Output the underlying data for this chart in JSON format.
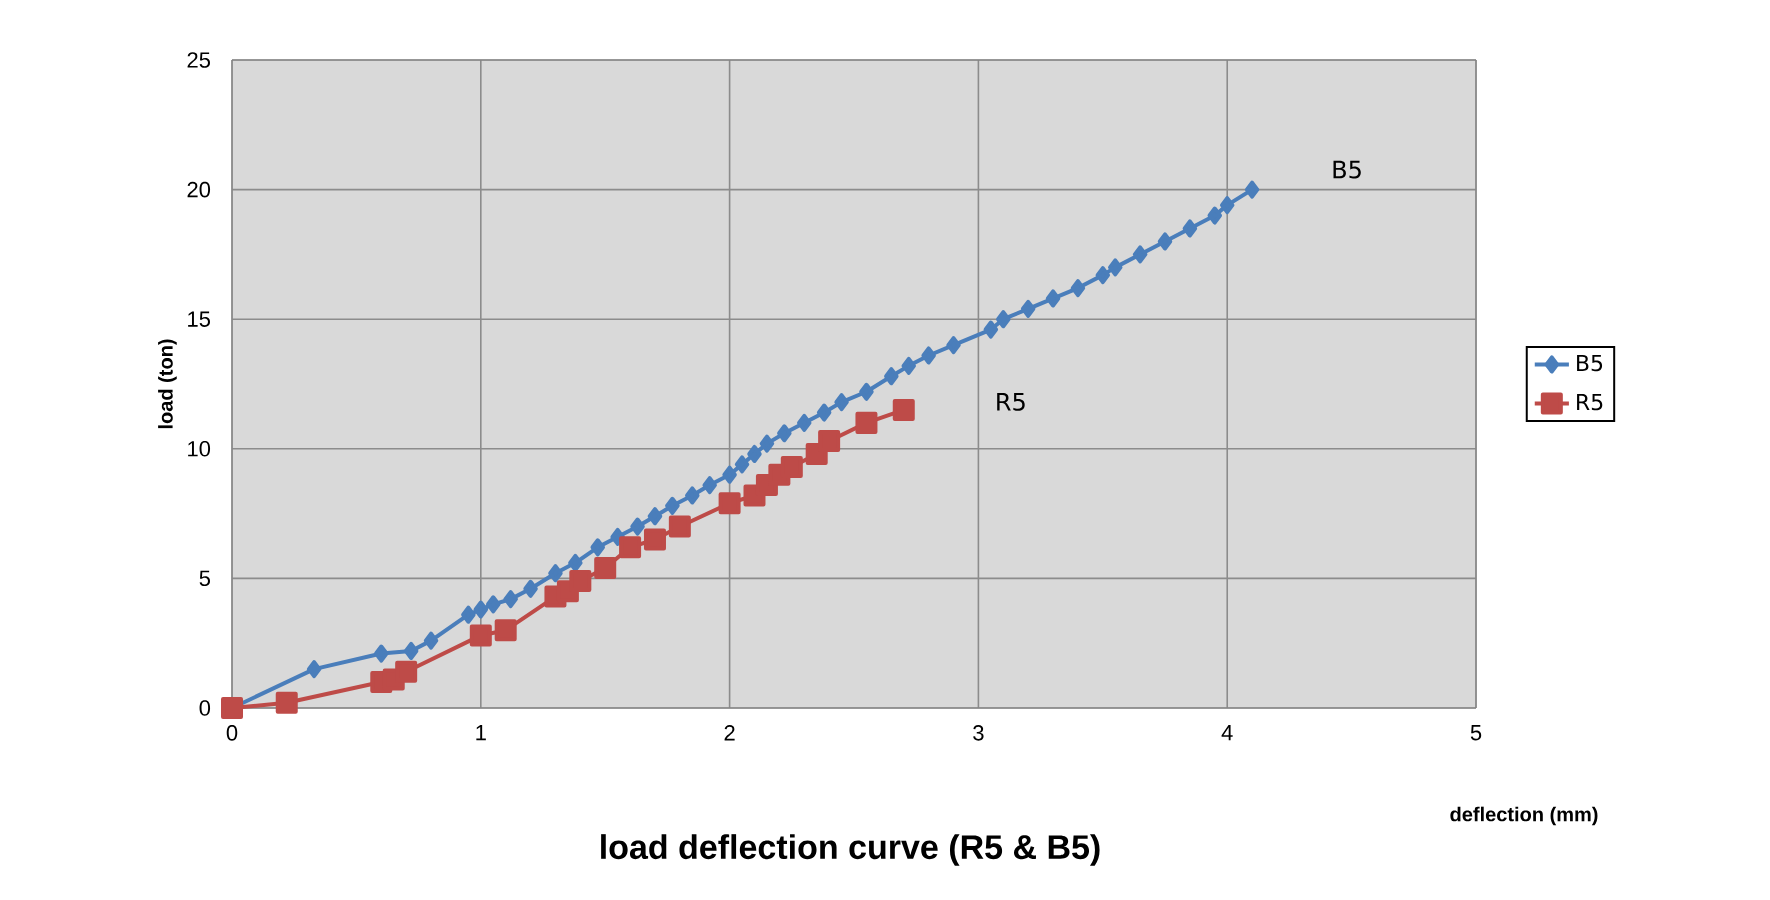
{
  "chart_data": {
    "type": "line",
    "title": "load deflection curve (R5 & B5)",
    "xlabel": "deflection (mm)",
    "ylabel": "load (ton)",
    "xlim": [
      0,
      5
    ],
    "ylim": [
      0,
      25
    ],
    "xticks": [
      0,
      1,
      2,
      3,
      4,
      5
    ],
    "yticks": [
      0,
      5,
      10,
      15,
      20,
      25
    ],
    "grid": true,
    "legend": "right",
    "series": [
      {
        "name": "B5",
        "color": "#4a7ebb",
        "marker": "diamond",
        "x": [
          0,
          0.33,
          0.6,
          0.72,
          0.8,
          0.95,
          1.0,
          1.05,
          1.12,
          1.2,
          1.3,
          1.38,
          1.47,
          1.55,
          1.63,
          1.7,
          1.77,
          1.85,
          1.92,
          2.0,
          2.05,
          2.1,
          2.15,
          2.22,
          2.3,
          2.38,
          2.45,
          2.55,
          2.65,
          2.72,
          2.8,
          2.9,
          3.05,
          3.1,
          3.2,
          3.3,
          3.4,
          3.5,
          3.55,
          3.65,
          3.75,
          3.85,
          3.95,
          4.0,
          4.1
        ],
        "values": [
          0,
          1.5,
          2.1,
          2.2,
          2.6,
          3.6,
          3.8,
          4.0,
          4.2,
          4.6,
          5.2,
          5.6,
          6.2,
          6.6,
          7.0,
          7.4,
          7.8,
          8.2,
          8.6,
          9.0,
          9.4,
          9.8,
          10.2,
          10.6,
          11.0,
          11.4,
          11.8,
          12.2,
          12.8,
          13.2,
          13.6,
          14.0,
          14.6,
          15.0,
          15.4,
          15.8,
          16.2,
          16.7,
          17.0,
          17.5,
          18.0,
          18.5,
          19.0,
          19.4,
          20.0
        ]
      },
      {
        "name": "R5",
        "color": "#be4b48",
        "marker": "square",
        "x": [
          0,
          0.22,
          0.6,
          0.65,
          0.7,
          1.0,
          1.1,
          1.3,
          1.35,
          1.4,
          1.5,
          1.6,
          1.7,
          1.8,
          2.0,
          2.1,
          2.15,
          2.2,
          2.25,
          2.35,
          2.4,
          2.55,
          2.7
        ],
        "values": [
          0,
          0.2,
          1.0,
          1.1,
          1.4,
          2.8,
          3.0,
          4.3,
          4.5,
          4.9,
          5.4,
          6.2,
          6.5,
          7.0,
          7.9,
          8.2,
          8.6,
          9.0,
          9.3,
          9.8,
          10.3,
          11.0,
          11.5
        ]
      }
    ],
    "annotations": [
      "B5",
      "R5"
    ]
  }
}
